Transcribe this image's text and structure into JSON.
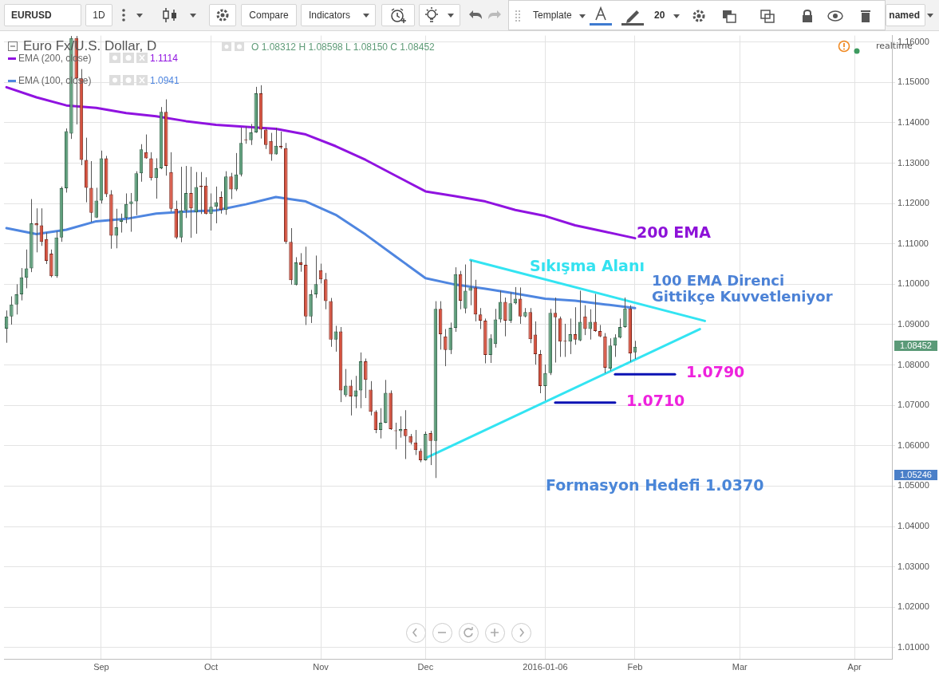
{
  "chart_data": {
    "type": "candlestick",
    "title": "Euro Fx/U.S. Dollar, D",
    "subtitle": "O 1.08312 H 1.08598 L 1.08150 C 1.08452",
    "categories": [
      null,
      null,
      null,
      null,
      null,
      null,
      null,
      null,
      null,
      null,
      null,
      null,
      null,
      null,
      null,
      null,
      null,
      null,
      null,
      "Sep",
      null,
      null,
      null,
      null,
      null,
      null,
      null,
      null,
      null,
      null,
      null,
      null,
      null,
      null,
      null,
      null,
      null,
      null,
      null,
      null,
      null,
      "Oct",
      null,
      null,
      null,
      null,
      null,
      null,
      null,
      null,
      null,
      null,
      null,
      null,
      null,
      null,
      null,
      null,
      null,
      null,
      null,
      null,
      null,
      "Nov",
      null,
      null,
      null,
      null,
      null,
      null,
      null,
      null,
      null,
      null,
      null,
      null,
      null,
      null,
      null,
      null,
      null,
      null,
      null,
      null,
      "Dec",
      null,
      null,
      null,
      null,
      null,
      null,
      null,
      null,
      null,
      null,
      null,
      null,
      null,
      null,
      null,
      null,
      null,
      null,
      null,
      null,
      null,
      null,
      null,
      "2016-01-06",
      null,
      null,
      null,
      null,
      null,
      null,
      null,
      null,
      null,
      null,
      null,
      null,
      null,
      null,
      null,
      null,
      null,
      "Feb",
      null,
      null,
      null,
      null,
      null,
      null,
      null,
      null,
      null,
      null,
      null,
      null,
      null,
      null,
      null,
      null,
      null,
      null,
      null,
      null,
      "Mar",
      null,
      null,
      null,
      null,
      null,
      null,
      null,
      null,
      null,
      null,
      null,
      null,
      null,
      null,
      null,
      null,
      null,
      null,
      null,
      null,
      null,
      null,
      "Apr",
      null,
      null,
      null,
      null,
      null,
      null,
      null
    ],
    "ohlc": [
      [
        1.089,
        1.0935,
        1.0855,
        1.092
      ],
      [
        1.092,
        1.097,
        1.09,
        1.095
      ],
      [
        1.095,
        1.1,
        1.0925,
        1.0975
      ],
      [
        1.0975,
        1.104,
        1.096,
        1.1017
      ],
      [
        1.1016,
        1.1086,
        1.099,
        1.1039
      ],
      [
        1.1039,
        1.1211,
        1.103,
        1.1151
      ],
      [
        1.1151,
        1.1188,
        1.1079,
        1.1146
      ],
      [
        1.1146,
        1.1188,
        1.1095,
        1.1105
      ],
      [
        1.1112,
        1.1128,
        1.105,
        1.1058
      ],
      [
        1.1076,
        1.1086,
        1.1017,
        1.102
      ],
      [
        1.102,
        1.1131,
        1.1016,
        1.1116
      ],
      [
        1.1116,
        1.1242,
        1.1105,
        1.1238
      ],
      [
        1.1238,
        1.1386,
        1.1227,
        1.1379
      ],
      [
        1.1373,
        1.1615,
        1.136,
        1.161
      ],
      [
        1.161,
        1.1615,
        1.1396,
        1.151
      ],
      [
        1.151,
        1.1533,
        1.1295,
        1.1308
      ],
      [
        1.1308,
        1.1363,
        1.1203,
        1.1239
      ],
      [
        1.1239,
        1.1305,
        1.1154,
        1.1177
      ],
      [
        1.1165,
        1.1239,
        1.1164,
        1.1207
      ],
      [
        1.1207,
        1.1331,
        1.12,
        1.1312
      ],
      [
        1.1312,
        1.1318,
        1.1216,
        1.1223
      ],
      [
        1.1223,
        1.1233,
        1.1088,
        1.112
      ],
      [
        1.112,
        1.1187,
        1.1089,
        1.1141
      ],
      [
        1.1155,
        1.1175,
        1.1128,
        1.116
      ],
      [
        1.1164,
        1.1225,
        1.1151,
        1.1199
      ],
      [
        1.1199,
        1.1226,
        1.113,
        1.1205
      ],
      [
        1.1205,
        1.128,
        1.1171,
        1.1275
      ],
      [
        1.1275,
        1.1347,
        1.1254,
        1.1334
      ],
      [
        1.1327,
        1.1371,
        1.1311,
        1.1312
      ],
      [
        1.1312,
        1.1327,
        1.1257,
        1.1263
      ],
      [
        1.1263,
        1.1312,
        1.1212,
        1.1287
      ],
      [
        1.1287,
        1.1439,
        1.1285,
        1.1427
      ],
      [
        1.1427,
        1.1458,
        1.1269,
        1.1293
      ],
      [
        1.1278,
        1.1327,
        1.118,
        1.1187
      ],
      [
        1.1187,
        1.1207,
        1.1112,
        1.1116
      ],
      [
        1.1116,
        1.1291,
        1.1104,
        1.1183
      ],
      [
        1.1183,
        1.1293,
        1.1164,
        1.1226
      ],
      [
        1.1226,
        1.1291,
        1.1115,
        1.1188
      ],
      [
        1.1178,
        1.1278,
        1.1125,
        1.1241
      ],
      [
        1.1244,
        1.1278,
        1.1174,
        1.1241
      ],
      [
        1.1244,
        1.1265,
        1.1173,
        1.1174
      ],
      [
        1.1174,
        1.1225,
        1.1133,
        1.1192
      ],
      [
        1.1192,
        1.1242,
        1.1151,
        1.1203
      ],
      [
        1.1216,
        1.123,
        1.1175,
        1.1184
      ],
      [
        1.1184,
        1.128,
        1.1172,
        1.1267
      ],
      [
        1.1267,
        1.1276,
        1.1211,
        1.1235
      ],
      [
        1.1235,
        1.1325,
        1.1231,
        1.1272
      ],
      [
        1.1272,
        1.1388,
        1.1267,
        1.135
      ],
      [
        1.1359,
        1.1391,
        1.1348,
        1.1357
      ],
      [
        1.1357,
        1.1397,
        1.1345,
        1.1376
      ],
      [
        1.1376,
        1.1489,
        1.1375,
        1.1473
      ],
      [
        1.1473,
        1.1493,
        1.1361,
        1.1383
      ],
      [
        1.1383,
        1.1388,
        1.1335,
        1.1345
      ],
      [
        1.1355,
        1.1375,
        1.1306,
        1.1322
      ],
      [
        1.1322,
        1.1388,
        1.1321,
        1.1343
      ],
      [
        1.1343,
        1.1378,
        1.1335,
        1.1339
      ],
      [
        1.1337,
        1.135,
        1.11,
        1.1105
      ],
      [
        1.1105,
        1.1139,
        1.0999,
        1.101
      ],
      [
        1.0998,
        1.1067,
        1.0997,
        1.1054
      ],
      [
        1.1054,
        1.1077,
        1.1031,
        1.1048
      ],
      [
        1.1048,
        1.1093,
        1.0899,
        1.092
      ],
      [
        1.092,
        1.0986,
        1.0904,
        1.0975
      ],
      [
        1.0975,
        1.1071,
        1.0966,
        1.1
      ],
      [
        1.1035,
        1.1051,
        1.1002,
        1.1012
      ],
      [
        1.1012,
        1.1028,
        1.0938,
        1.0958
      ],
      [
        1.0958,
        1.0966,
        1.0845,
        1.0863
      ],
      [
        1.0863,
        1.0897,
        1.0833,
        1.0883
      ],
      [
        1.0883,
        1.0894,
        1.0708,
        1.0737
      ],
      [
        1.0725,
        1.079,
        1.0721,
        1.0749
      ],
      [
        1.0749,
        1.0763,
        1.0675,
        1.0722
      ],
      [
        1.0722,
        1.0773,
        1.0693,
        1.0737
      ],
      [
        1.0737,
        1.0831,
        1.0693,
        1.0809
      ],
      [
        1.0809,
        1.0816,
        1.0718,
        1.0763
      ],
      [
        1.0739,
        1.076,
        1.0675,
        1.0684
      ],
      [
        1.0684,
        1.0688,
        1.0631,
        1.0639
      ],
      [
        1.0639,
        1.0693,
        1.0618,
        1.0657
      ],
      [
        1.0657,
        1.0763,
        1.0656,
        1.0731
      ],
      [
        1.0731,
        1.0737,
        1.0639,
        1.0641
      ],
      [
        1.0637,
        1.0657,
        1.0591,
        1.0636
      ],
      [
        1.0636,
        1.0673,
        1.062,
        1.0641
      ],
      [
        1.0641,
        1.0688,
        1.0567,
        1.0624
      ],
      [
        1.0624,
        1.0629,
        1.0603,
        1.0608
      ],
      [
        1.0608,
        1.0639,
        1.0577,
        1.0589
      ],
      [
        1.0587,
        1.0593,
        1.0559,
        1.0564
      ],
      [
        1.0564,
        1.0635,
        1.0563,
        1.0629
      ],
      [
        1.0631,
        1.0637,
        1.0552,
        1.0612
      ],
      [
        1.0612,
        1.0958,
        1.052,
        1.0939
      ],
      [
        1.0939,
        1.0958,
        1.0838,
        1.0876
      ],
      [
        1.0871,
        1.0889,
        1.0797,
        1.0837
      ],
      [
        1.0837,
        1.0905,
        1.0827,
        1.0892
      ],
      [
        1.0892,
        1.1042,
        1.0882,
        1.1025
      ],
      [
        1.1025,
        1.1033,
        1.0938,
        1.0959
      ],
      [
        1.094,
        1.1049,
        1.0928,
        1.0984
      ],
      [
        1.0984,
        1.1059,
        1.0948,
        1.0992
      ],
      [
        1.0992,
        1.1011,
        1.0908,
        1.0925
      ],
      [
        1.0925,
        1.0941,
        1.0889,
        1.091
      ],
      [
        1.091,
        1.0915,
        1.0804,
        1.0825
      ],
      [
        1.0825,
        1.0876,
        1.0805,
        1.0866
      ],
      [
        1.0852,
        1.0939,
        1.0843,
        1.0913
      ],
      [
        1.0913,
        1.0984,
        1.0905,
        1.0956
      ],
      [
        1.0956,
        1.0967,
        1.0871,
        1.091
      ],
      [
        1.091,
        1.098,
        1.0904,
        1.0953
      ],
      [
        1.0953,
        1.0993,
        1.095,
        1.0964
      ],
      [
        1.0964,
        1.0992,
        1.0902,
        1.092
      ],
      [
        1.092,
        1.0941,
        1.0918,
        1.0931
      ],
      [
        1.0931,
        1.0941,
        1.0854,
        1.0864
      ],
      [
        1.0875,
        1.0908,
        1.0801,
        1.0827
      ],
      [
        1.0827,
        1.0837,
        1.073,
        1.0748
      ],
      [
        1.0748,
        1.0801,
        1.0712,
        1.078
      ],
      [
        1.078,
        1.0939,
        1.0775,
        1.0929
      ],
      [
        1.0929,
        1.0967,
        1.0806,
        1.0918
      ],
      [
        1.0915,
        1.092,
        1.082,
        1.0858
      ],
      [
        1.0859,
        1.0902,
        1.082,
        1.0858
      ],
      [
        1.0858,
        1.0915,
        1.0827,
        1.0876
      ],
      [
        1.0876,
        1.0943,
        1.085,
        1.0863
      ],
      [
        1.0861,
        1.0984,
        1.0859,
        1.0907
      ],
      [
        1.092,
        1.0948,
        1.0874,
        1.0889
      ],
      [
        1.0889,
        1.0938,
        1.0863,
        1.0907
      ],
      [
        1.0907,
        1.0976,
        1.0882,
        1.0884
      ],
      [
        1.0884,
        1.0899,
        1.0869,
        1.0871
      ],
      [
        1.0871,
        1.0879,
        1.078,
        1.0793
      ],
      [
        1.0791,
        1.0866,
        1.0786,
        1.0848
      ],
      [
        1.0848,
        1.0876,
        1.082,
        1.0868
      ],
      [
        1.0868,
        1.0915,
        1.0866,
        1.0894
      ],
      [
        1.0894,
        1.0967,
        1.0892,
        1.094
      ],
      [
        1.094,
        1.0948,
        1.0808,
        1.0829
      ],
      [
        1.08312,
        1.08598,
        1.0815,
        1.08452
      ],
      null,
      null,
      null,
      null,
      null,
      null,
      null,
      null,
      null,
      null,
      null,
      null,
      null,
      null,
      null,
      null,
      null,
      null,
      null,
      null,
      null,
      null,
      null,
      null,
      null,
      null,
      null,
      null,
      null,
      null,
      null,
      null,
      null,
      null,
      null,
      null,
      null,
      null,
      null,
      null,
      null,
      null,
      null,
      null,
      null,
      null,
      null,
      null,
      null,
      null,
      null
    ],
    "series": [
      {
        "name": "EMA (200, close)",
        "type": "line",
        "color": "#9013e0",
        "values": [
          1.1488,
          null,
          null,
          null,
          null,
          null,
          1.1463,
          null,
          null,
          null,
          null,
          null,
          1.1443,
          null,
          null,
          null,
          null,
          null,
          1.1437,
          null,
          null,
          null,
          null,
          null,
          1.1424,
          null,
          null,
          null,
          null,
          null,
          1.1416,
          null,
          null,
          null,
          null,
          null,
          1.1404,
          null,
          null,
          null,
          null,
          null,
          1.1395,
          null,
          null,
          null,
          null,
          null,
          1.139,
          null,
          null,
          null,
          null,
          null,
          1.1385,
          null,
          null,
          null,
          null,
          null,
          1.1371,
          null,
          null,
          null,
          null,
          null,
          1.1342,
          null,
          null,
          null,
          null,
          null,
          1.1308,
          null,
          null,
          null,
          null,
          null,
          1.1269,
          null,
          null,
          null,
          null,
          null,
          1.123,
          null,
          null,
          null,
          null,
          null,
          1.1218,
          null,
          null,
          null,
          null,
          null,
          1.1205,
          null,
          null,
          null,
          null,
          null,
          1.1184,
          null,
          null,
          null,
          null,
          null,
          1.1169,
          null,
          null,
          null,
          null,
          null,
          1.1146,
          null,
          null,
          null,
          null,
          null,
          1.113,
          null,
          null,
          null,
          null,
          null,
          1.1114,
          null,
          null,
          null,
          null,
          null,
          null,
          null,
          null,
          null,
          null,
          null,
          null,
          null,
          null,
          null,
          null,
          null,
          null,
          null,
          null,
          null,
          null,
          null,
          null,
          null,
          null,
          null,
          null,
          null,
          null,
          null,
          null,
          null,
          null,
          null,
          null,
          null,
          null,
          null,
          null,
          null,
          null,
          null,
          null,
          null,
          null,
          null,
          null,
          null,
          null,
          null
        ]
      },
      {
        "name": "EMA (100, close)",
        "type": "line",
        "color": "#4f86e0",
        "values": [
          1.1139,
          null,
          null,
          null,
          null,
          null,
          1.1124,
          null,
          null,
          null,
          null,
          null,
          1.1135,
          null,
          null,
          null,
          null,
          null,
          1.1156,
          null,
          null,
          null,
          null,
          null,
          1.1162,
          null,
          null,
          null,
          null,
          null,
          1.1175,
          null,
          null,
          null,
          null,
          null,
          1.118,
          null,
          null,
          null,
          null,
          null,
          1.1183,
          null,
          null,
          null,
          null,
          null,
          1.1198,
          null,
          null,
          null,
          null,
          null,
          1.1216,
          null,
          null,
          null,
          null,
          null,
          1.1205,
          null,
          null,
          null,
          null,
          null,
          1.1172,
          null,
          null,
          null,
          null,
          null,
          1.1123,
          null,
          null,
          null,
          null,
          null,
          1.1069,
          null,
          null,
          null,
          null,
          null,
          1.1015,
          null,
          null,
          null,
          null,
          null,
          1.0999,
          null,
          null,
          null,
          null,
          null,
          1.0989,
          null,
          null,
          null,
          null,
          null,
          1.0977,
          null,
          null,
          null,
          null,
          null,
          1.0964,
          null,
          null,
          null,
          null,
          null,
          1.0959,
          null,
          null,
          null,
          null,
          null,
          1.095,
          null,
          null,
          null,
          null,
          null,
          1.0941,
          null,
          null,
          null,
          null,
          null,
          null,
          null,
          null,
          null,
          null,
          null,
          null,
          null,
          null,
          null,
          null,
          null,
          null,
          null,
          null,
          null,
          null,
          null,
          null,
          null,
          null,
          null,
          null,
          null,
          null,
          null,
          null,
          null,
          null,
          null,
          null,
          null,
          null,
          null,
          null,
          null,
          null,
          null,
          null,
          null,
          null,
          null,
          null,
          null,
          null,
          null
        ]
      },
      {
        "type": "line",
        "color": "#33e4f2",
        "values": [
          null,
          null,
          null,
          null,
          null,
          null,
          null,
          null,
          null,
          null,
          null,
          null,
          null,
          null,
          null,
          null,
          null,
          null,
          null,
          null,
          null,
          null,
          null,
          null,
          null,
          null,
          null,
          null,
          null,
          null,
          null,
          null,
          null,
          null,
          null,
          null,
          null,
          null,
          null,
          null,
          null,
          null,
          null,
          null,
          null,
          null,
          null,
          null,
          null,
          null,
          null,
          null,
          null,
          null,
          null,
          null,
          null,
          null,
          null,
          null,
          null,
          null,
          null,
          null,
          null,
          null,
          null,
          null,
          null,
          null,
          null,
          null,
          null,
          null,
          null,
          null,
          null,
          null,
          null,
          null,
          null,
          null,
          null,
          null,
          null,
          null,
          null,
          null,
          null,
          null,
          null,
          null,
          null,
          1.106,
          null,
          null,
          null,
          null,
          null,
          null,
          null,
          null,
          null,
          null,
          null,
          null,
          null,
          null,
          null,
          null,
          null,
          null,
          null,
          null,
          null,
          null,
          null,
          null,
          null,
          null,
          null,
          null,
          null,
          null,
          null,
          null,
          null,
          null,
          null,
          null,
          null,
          null,
          null,
          null,
          null,
          null,
          null,
          null,
          null,
          null,
          1.0909,
          null,
          null,
          null,
          null,
          null,
          null,
          null,
          null,
          null,
          null,
          null,
          null,
          null,
          null,
          null,
          null,
          null,
          null,
          null,
          null,
          null,
          null,
          null,
          null,
          null,
          null,
          null,
          null,
          null,
          null,
          null,
          null,
          null,
          null,
          null,
          null,
          null
        ]
      },
      {
        "type": "line",
        "color": "#33e4f2",
        "values": [
          null,
          null,
          null,
          null,
          null,
          null,
          null,
          null,
          null,
          null,
          null,
          null,
          null,
          null,
          null,
          null,
          null,
          null,
          null,
          null,
          null,
          null,
          null,
          null,
          null,
          null,
          null,
          null,
          null,
          null,
          null,
          null,
          null,
          null,
          null,
          null,
          null,
          null,
          null,
          null,
          null,
          null,
          null,
          null,
          null,
          null,
          null,
          null,
          null,
          null,
          null,
          null,
          null,
          null,
          null,
          null,
          null,
          null,
          null,
          null,
          null,
          null,
          null,
          null,
          null,
          null,
          null,
          null,
          null,
          null,
          null,
          null,
          null,
          null,
          null,
          null,
          null,
          null,
          null,
          null,
          null,
          null,
          null,
          null,
          1.0569,
          null,
          null,
          null,
          null,
          null,
          null,
          null,
          null,
          null,
          null,
          null,
          null,
          null,
          null,
          null,
          null,
          null,
          null,
          null,
          null,
          null,
          null,
          null,
          null,
          null,
          null,
          null,
          null,
          null,
          null,
          null,
          null,
          null,
          null,
          null,
          null,
          null,
          null,
          null,
          null,
          null,
          null,
          null,
          null,
          null,
          null,
          null,
          null,
          null,
          null,
          null,
          null,
          null,
          null,
          1.0889,
          null,
          null,
          null,
          null,
          null,
          null,
          null,
          null,
          null,
          null,
          null,
          null,
          null,
          null,
          null,
          null,
          null,
          null,
          null,
          null,
          null,
          null,
          null,
          null,
          null,
          null,
          null,
          null,
          null,
          null,
          null,
          null,
          null,
          null,
          null,
          null,
          null,
          null
        ]
      },
      {
        "type": "line",
        "color": "#0b12b4",
        "values": [
          null,
          null,
          null,
          null,
          null,
          null,
          null,
          null,
          null,
          null,
          null,
          null,
          null,
          null,
          null,
          null,
          null,
          null,
          null,
          null,
          null,
          null,
          null,
          null,
          null,
          null,
          null,
          null,
          null,
          null,
          null,
          null,
          null,
          null,
          null,
          null,
          null,
          null,
          null,
          null,
          null,
          null,
          null,
          null,
          null,
          null,
          null,
          null,
          null,
          null,
          null,
          null,
          null,
          null,
          null,
          null,
          null,
          null,
          null,
          null,
          null,
          null,
          null,
          null,
          null,
          null,
          null,
          null,
          null,
          null,
          null,
          null,
          null,
          null,
          null,
          null,
          null,
          null,
          null,
          null,
          null,
          null,
          null,
          null,
          null,
          null,
          null,
          null,
          null,
          null,
          null,
          null,
          null,
          null,
          null,
          null,
          null,
          null,
          null,
          null,
          null,
          null,
          null,
          null,
          null,
          null,
          null,
          null,
          null,
          null,
          1.0707,
          null,
          null,
          null,
          null,
          null,
          null,
          null,
          null,
          null,
          null,
          null,
          1.0707,
          null,
          null,
          null,
          null,
          null,
          null,
          null,
          null,
          null,
          null,
          null,
          null,
          null,
          null,
          null,
          null,
          null,
          null,
          null,
          null,
          null,
          null,
          null,
          null,
          null,
          null,
          null,
          null,
          null,
          null,
          null,
          null,
          null,
          null,
          null,
          null,
          null,
          null,
          null,
          null,
          null,
          null,
          null,
          null,
          null,
          null,
          null,
          null,
          null,
          null,
          null,
          null,
          null,
          null,
          null
        ]
      },
      {
        "type": "line",
        "color": "#0b12b4",
        "values": [
          null,
          null,
          null,
          null,
          null,
          null,
          null,
          null,
          null,
          null,
          null,
          null,
          null,
          null,
          null,
          null,
          null,
          null,
          null,
          null,
          null,
          null,
          null,
          null,
          null,
          null,
          null,
          null,
          null,
          null,
          null,
          null,
          null,
          null,
          null,
          null,
          null,
          null,
          null,
          null,
          null,
          null,
          null,
          null,
          null,
          null,
          null,
          null,
          null,
          null,
          null,
          null,
          null,
          null,
          null,
          null,
          null,
          null,
          null,
          null,
          null,
          null,
          null,
          null,
          null,
          null,
          null,
          null,
          null,
          null,
          null,
          null,
          null,
          null,
          null,
          null,
          null,
          null,
          null,
          null,
          null,
          null,
          null,
          null,
          null,
          null,
          null,
          null,
          null,
          null,
          null,
          null,
          null,
          null,
          null,
          null,
          null,
          null,
          null,
          null,
          null,
          null,
          null,
          null,
          null,
          null,
          null,
          null,
          null,
          null,
          null,
          null,
          null,
          null,
          null,
          null,
          null,
          null,
          null,
          null,
          null,
          null,
          1.0777,
          null,
          null,
          null,
          null,
          null,
          null,
          null,
          null,
          null,
          null,
          null,
          1.0777,
          null,
          null,
          null,
          null,
          null,
          null,
          null,
          null,
          null,
          null,
          null,
          null,
          null,
          null,
          null,
          null,
          null,
          null,
          null,
          null,
          null,
          null,
          null,
          null,
          null,
          null,
          null,
          null,
          null,
          null,
          null,
          null,
          null,
          null,
          null,
          null,
          null,
          null,
          null,
          null,
          null,
          null,
          null
        ]
      }
    ],
    "ylim": [
      1.0072,
      1.1616
    ],
    "yticks": [
      {
        "value": 1.01,
        "label": "1.01000"
      },
      {
        "value": 1.02,
        "label": "1.02000"
      },
      {
        "value": 1.03,
        "label": "1.03000"
      },
      {
        "value": 1.04,
        "label": "1.04000"
      },
      {
        "value": 1.05,
        "label": "1.05000"
      },
      {
        "value": 1.06,
        "label": "1.06000"
      },
      {
        "value": 1.07,
        "label": "1.07000"
      },
      {
        "value": 1.08,
        "label": "1.08000"
      },
      {
        "value": 1.09,
        "label": "1.09000"
      },
      {
        "value": 1.1,
        "label": "1.10000"
      },
      {
        "value": 1.11,
        "label": "1.11000"
      },
      {
        "value": 1.12,
        "label": "1.12000"
      },
      {
        "value": 1.13,
        "label": "1.13000"
      },
      {
        "value": 1.14,
        "label": "1.14000"
      },
      {
        "value": 1.15,
        "label": "1.15000"
      },
      {
        "value": 1.16,
        "label": "1.16000"
      }
    ],
    "grid": true,
    "legend": "top left",
    "annotations": [
      "EURUSD",
      "1D",
      "Compare",
      "Indicators",
      "Template",
      "20",
      "named",
      "1.1114",
      "1.0941",
      "realtime",
      "200 EMA",
      "Sıkışma Alanı",
      "100 EMA Direnci",
      "Gittikçe Kuvvetleniyor",
      "1.0790",
      "1.0710",
      "Formasyon Hedefi 1.0370",
      "1.08452",
      "1.05246"
    ]
  }
}
